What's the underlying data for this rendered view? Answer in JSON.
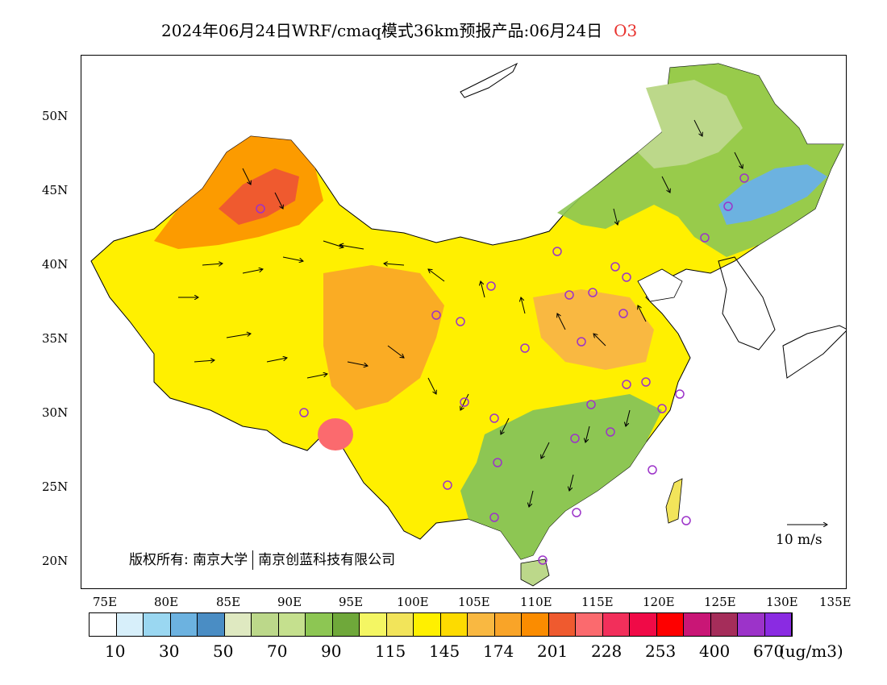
{
  "title": {
    "main": "2024年06月24日WRF/cmaq模式36km预报产品:06月24日",
    "species": "O3"
  },
  "axes": {
    "lat_labels": [
      "50N",
      "45N",
      "40N",
      "35N",
      "30N",
      "25N",
      "20N"
    ],
    "lon_labels": [
      "75E",
      "80E",
      "85E",
      "90E",
      "95E",
      "100E",
      "105E",
      "110E",
      "115E",
      "120E",
      "125E",
      "130E",
      "135E"
    ]
  },
  "copyright": {
    "left": "版权所有: 南京大学",
    "right": "南京创蓝科技有限公司"
  },
  "wind_scale": {
    "label": "10  m/s"
  },
  "colorbar": {
    "colors": [
      "#ffffff",
      "#d7effa",
      "#9ad7f1",
      "#6cb2e0",
      "#4a8dc4",
      "#dfe9c1",
      "#bcd88a",
      "#c5e08e",
      "#8dc653",
      "#6fa83a",
      "#f4f663",
      "#f2e45a",
      "#fff000",
      "#fddb00",
      "#f9b841",
      "#f9a428",
      "#fb8c00",
      "#ef5a2f",
      "#fb6a6e",
      "#f22f5b",
      "#f00a47",
      "#fe0000",
      "#c91676",
      "#a52d5a",
      "#9c33c9",
      "#8a2be2"
    ],
    "labels": [
      "10",
      "30",
      "50",
      "70",
      "90",
      "115",
      "145",
      "174",
      "201",
      "228",
      "253",
      "400",
      "670"
    ],
    "unit": "(ug/m3)"
  },
  "map": {
    "province_markers": 32
  }
}
